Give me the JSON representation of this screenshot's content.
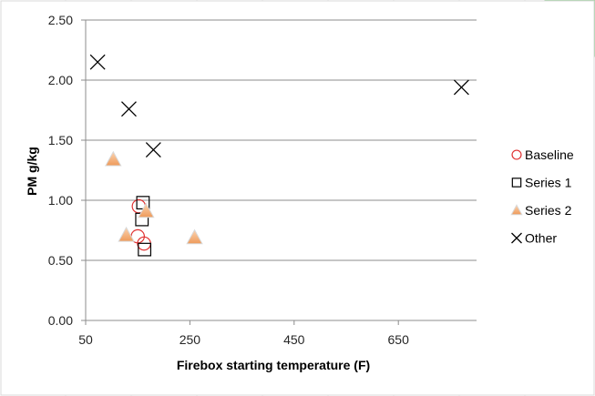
{
  "chart_data": {
    "type": "scatter",
    "title": "",
    "xlabel": "Firebox starting temperature (F)",
    "ylabel": "PM g/kg",
    "xlim": [
      50,
      800
    ],
    "ylim": [
      0,
      2.5
    ],
    "x_ticks": [
      "50",
      "250",
      "450",
      "650"
    ],
    "x_tick_values": [
      50,
      250,
      450,
      650
    ],
    "y_ticks": [
      "0.00",
      "0.50",
      "1.00",
      "1.50",
      "2.00",
      "2.50"
    ],
    "y_tick_values": [
      0,
      0.5,
      1.0,
      1.5,
      2.0,
      2.5
    ],
    "grid": "horizontal",
    "legend_position": "right",
    "series": [
      {
        "name": "Baseline",
        "marker": "circle",
        "color": "#e03030",
        "points": [
          [
            152,
            0.95
          ],
          [
            150,
            0.7
          ],
          [
            162,
            0.64
          ]
        ]
      },
      {
        "name": "Series 1",
        "marker": "square",
        "color": "#000000",
        "points": [
          [
            160,
            0.98
          ],
          [
            158,
            0.84
          ],
          [
            163,
            0.59
          ]
        ]
      },
      {
        "name": "Series 2",
        "marker": "triangle",
        "color": "#f4a96a",
        "points": [
          [
            103,
            1.34
          ],
          [
            128,
            0.71
          ],
          [
            166,
            0.91
          ],
          [
            259,
            0.69
          ]
        ]
      },
      {
        "name": "Other",
        "marker": "x",
        "color": "#000000",
        "points": [
          [
            73,
            2.15
          ],
          [
            133,
            1.76
          ],
          [
            180,
            1.42
          ],
          [
            771,
            1.94
          ]
        ]
      }
    ]
  }
}
